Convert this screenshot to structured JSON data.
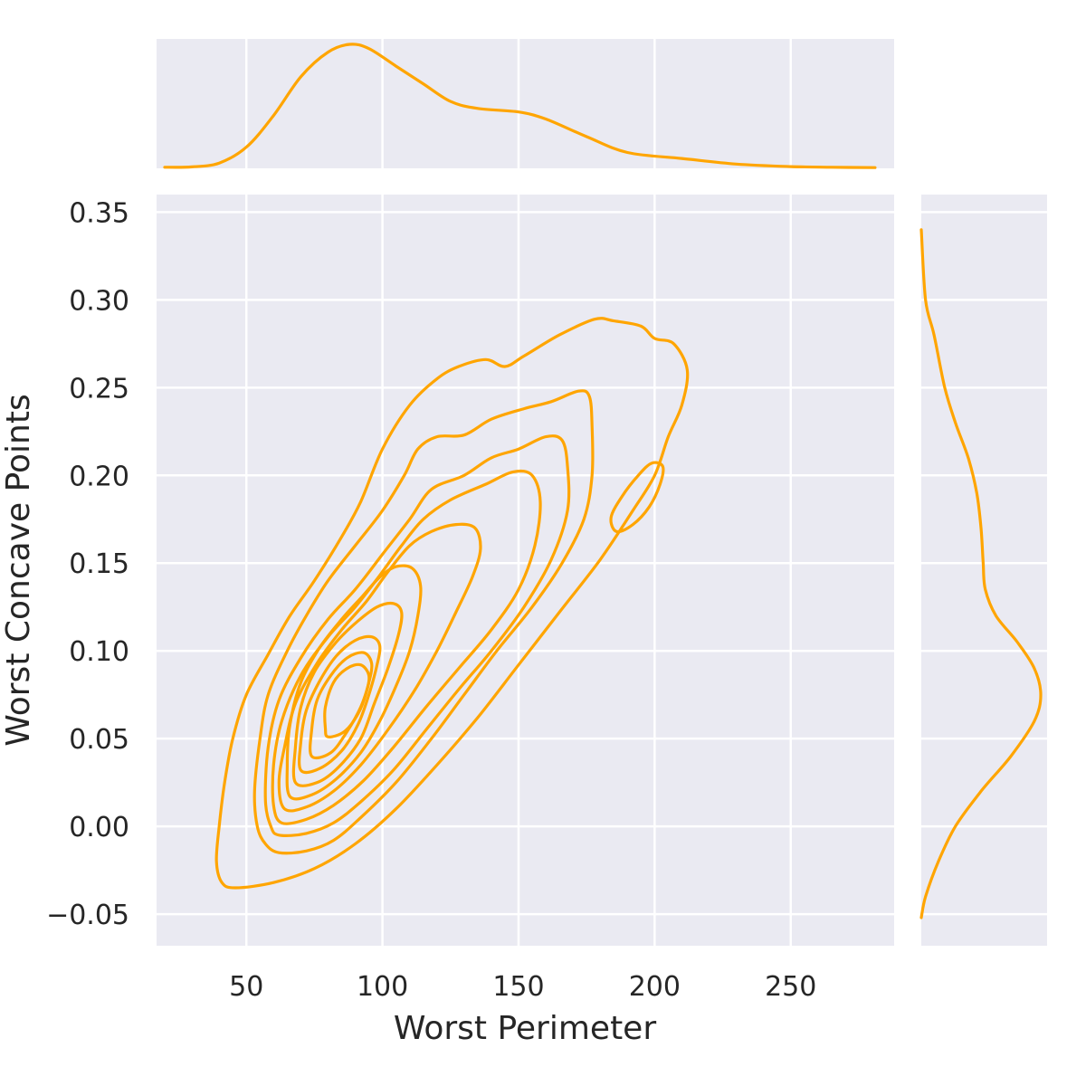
{
  "chart_data": {
    "type": "kde-joint",
    "xlabel": "Worst Perimeter",
    "ylabel": "Worst Concave Points",
    "xlim": [
      17,
      288
    ],
    "ylim": [
      -0.068,
      0.36
    ],
    "x_ticks": [
      50,
      100,
      150,
      200,
      250
    ],
    "x_tick_labels": [
      "50",
      "100",
      "150",
      "200",
      "250"
    ],
    "y_ticks": [
      -0.05,
      0.0,
      0.05,
      0.1,
      0.15,
      0.2,
      0.25,
      0.3,
      0.35
    ],
    "y_tick_labels": [
      "−0.05",
      "0.00",
      "0.05",
      "0.10",
      "0.15",
      "0.20",
      "0.25",
      "0.30",
      "0.35"
    ],
    "grid": true,
    "line_color": "#FFA500",
    "panel_color": "#EAEAF2",
    "contours": [
      {
        "level": 1,
        "points": [
          [
            46,
            -0.035
          ],
          [
            60,
            -0.032
          ],
          [
            75,
            -0.024
          ],
          [
            90,
            -0.01
          ],
          [
            105,
            0.01
          ],
          [
            120,
            0.035
          ],
          [
            135,
            0.062
          ],
          [
            150,
            0.092
          ],
          [
            165,
            0.122
          ],
          [
            180,
            0.152
          ],
          [
            192,
            0.18
          ],
          [
            200,
            0.2
          ],
          [
            205,
            0.222
          ],
          [
            210,
            0.24
          ],
          [
            212,
            0.26
          ],
          [
            207,
            0.275
          ],
          [
            200,
            0.278
          ],
          [
            195,
            0.285
          ],
          [
            185,
            0.288
          ],
          [
            178,
            0.289
          ],
          [
            165,
            0.28
          ],
          [
            152,
            0.268
          ],
          [
            145,
            0.262
          ],
          [
            138,
            0.266
          ],
          [
            128,
            0.262
          ],
          [
            120,
            0.255
          ],
          [
            110,
            0.24
          ],
          [
            100,
            0.215
          ],
          [
            92,
            0.185
          ],
          [
            85,
            0.165
          ],
          [
            75,
            0.14
          ],
          [
            66,
            0.12
          ],
          [
            58,
            0.098
          ],
          [
            50,
            0.075
          ],
          [
            45,
            0.05
          ],
          [
            42,
            0.025
          ],
          [
            40,
            0.0
          ],
          [
            39,
            -0.02
          ],
          [
            41,
            -0.032
          ],
          [
            46,
            -0.035
          ]
        ]
      },
      {
        "level": 2,
        "points": [
          [
            62,
            -0.015
          ],
          [
            72,
            -0.014
          ],
          [
            82,
            -0.008
          ],
          [
            92,
            0.005
          ],
          [
            105,
            0.025
          ],
          [
            118,
            0.05
          ],
          [
            130,
            0.075
          ],
          [
            142,
            0.1
          ],
          [
            155,
            0.125
          ],
          [
            166,
            0.15
          ],
          [
            174,
            0.175
          ],
          [
            177,
            0.2
          ],
          [
            177,
            0.228
          ],
          [
            176,
            0.245
          ],
          [
            172,
            0.248
          ],
          [
            162,
            0.242
          ],
          [
            152,
            0.238
          ],
          [
            140,
            0.232
          ],
          [
            130,
            0.223
          ],
          [
            120,
            0.222
          ],
          [
            113,
            0.215
          ],
          [
            108,
            0.2
          ],
          [
            100,
            0.18
          ],
          [
            90,
            0.16
          ],
          [
            80,
            0.14
          ],
          [
            72,
            0.12
          ],
          [
            65,
            0.1
          ],
          [
            58,
            0.075
          ],
          [
            55,
            0.05
          ],
          [
            53,
            0.02
          ],
          [
            54,
            0.0
          ],
          [
            57,
            -0.01
          ],
          [
            62,
            -0.015
          ]
        ]
      },
      {
        "level": 3,
        "points": [
          [
            62,
            -0.005
          ],
          [
            72,
            -0.004
          ],
          [
            82,
            0.002
          ],
          [
            92,
            0.014
          ],
          [
            104,
            0.032
          ],
          [
            116,
            0.055
          ],
          [
            128,
            0.078
          ],
          [
            140,
            0.1
          ],
          [
            152,
            0.125
          ],
          [
            162,
            0.152
          ],
          [
            168,
            0.18
          ],
          [
            168,
            0.205
          ],
          [
            166,
            0.22
          ],
          [
            160,
            0.222
          ],
          [
            150,
            0.215
          ],
          [
            140,
            0.21
          ],
          [
            130,
            0.2
          ],
          [
            118,
            0.192
          ],
          [
            110,
            0.175
          ],
          [
            100,
            0.155
          ],
          [
            90,
            0.135
          ],
          [
            80,
            0.118
          ],
          [
            70,
            0.096
          ],
          [
            62,
            0.072
          ],
          [
            58,
            0.045
          ],
          [
            57,
            0.015
          ],
          [
            59,
            0.0
          ],
          [
            62,
            -0.005
          ]
        ]
      },
      {
        "level": 4,
        "points": [
          [
            63,
            0.002
          ],
          [
            72,
            0.004
          ],
          [
            82,
            0.012
          ],
          [
            93,
            0.026
          ],
          [
            104,
            0.045
          ],
          [
            116,
            0.068
          ],
          [
            128,
            0.09
          ],
          [
            140,
            0.112
          ],
          [
            150,
            0.135
          ],
          [
            156,
            0.16
          ],
          [
            158,
            0.185
          ],
          [
            155,
            0.2
          ],
          [
            148,
            0.202
          ],
          [
            138,
            0.195
          ],
          [
            125,
            0.186
          ],
          [
            115,
            0.175
          ],
          [
            107,
            0.16
          ],
          [
            99,
            0.143
          ],
          [
            90,
            0.125
          ],
          [
            80,
            0.108
          ],
          [
            70,
            0.086
          ],
          [
            63,
            0.06
          ],
          [
            60,
            0.035
          ],
          [
            60,
            0.012
          ],
          [
            63,
            0.002
          ]
        ]
      },
      {
        "level": 5,
        "points": [
          [
            64,
            0.01
          ],
          [
            72,
            0.011
          ],
          [
            82,
            0.02
          ],
          [
            92,
            0.035
          ],
          [
            102,
            0.055
          ],
          [
            112,
            0.078
          ],
          [
            120,
            0.1
          ],
          [
            127,
            0.122
          ],
          [
            133,
            0.142
          ],
          [
            136,
            0.158
          ],
          [
            134,
            0.17
          ],
          [
            127,
            0.172
          ],
          [
            118,
            0.168
          ],
          [
            110,
            0.16
          ],
          [
            102,
            0.145
          ],
          [
            94,
            0.128
          ],
          [
            85,
            0.112
          ],
          [
            76,
            0.093
          ],
          [
            68,
            0.07
          ],
          [
            64,
            0.045
          ],
          [
            62,
            0.025
          ],
          [
            64,
            0.01
          ]
        ]
      },
      {
        "level": 6,
        "points": [
          [
            66,
            0.017
          ],
          [
            74,
            0.018
          ],
          [
            83,
            0.027
          ],
          [
            92,
            0.042
          ],
          [
            99,
            0.06
          ],
          [
            105,
            0.08
          ],
          [
            110,
            0.1
          ],
          [
            113,
            0.12
          ],
          [
            114,
            0.137
          ],
          [
            111,
            0.147
          ],
          [
            105,
            0.148
          ],
          [
            99,
            0.142
          ],
          [
            92,
            0.13
          ],
          [
            85,
            0.118
          ],
          [
            77,
            0.102
          ],
          [
            70,
            0.082
          ],
          [
            66,
            0.058
          ],
          [
            65,
            0.035
          ],
          [
            66,
            0.017
          ]
        ]
      },
      {
        "level": 7,
        "points": [
          [
            68,
            0.025
          ],
          [
            76,
            0.025
          ],
          [
            84,
            0.034
          ],
          [
            92,
            0.05
          ],
          [
            97,
            0.07
          ],
          [
            102,
            0.09
          ],
          [
            106,
            0.11
          ],
          [
            107,
            0.122
          ],
          [
            104,
            0.127
          ],
          [
            98,
            0.125
          ],
          [
            91,
            0.117
          ],
          [
            83,
            0.105
          ],
          [
            75,
            0.088
          ],
          [
            70,
            0.068
          ],
          [
            68,
            0.045
          ],
          [
            68,
            0.025
          ]
        ]
      },
      {
        "level": 8,
        "points": [
          [
            70,
            0.032
          ],
          [
            77,
            0.033
          ],
          [
            85,
            0.043
          ],
          [
            91,
            0.058
          ],
          [
            95,
            0.075
          ],
          [
            98,
            0.092
          ],
          [
            99,
            0.103
          ],
          [
            96,
            0.108
          ],
          [
            90,
            0.106
          ],
          [
            83,
            0.097
          ],
          [
            77,
            0.083
          ],
          [
            72,
            0.066
          ],
          [
            70,
            0.048
          ],
          [
            70,
            0.032
          ]
        ]
      },
      {
        "level": 9,
        "points": [
          [
            74,
            0.04
          ],
          [
            81,
            0.042
          ],
          [
            87,
            0.054
          ],
          [
            92,
            0.068
          ],
          [
            95,
            0.082
          ],
          [
            96,
            0.093
          ],
          [
            93,
            0.099
          ],
          [
            87,
            0.096
          ],
          [
            81,
            0.086
          ],
          [
            76,
            0.072
          ],
          [
            74,
            0.055
          ],
          [
            74,
            0.04
          ]
        ]
      },
      {
        "level": 10,
        "points": [
          [
            80,
            0.051
          ],
          [
            86,
            0.054
          ],
          [
            91,
            0.064
          ],
          [
            94,
            0.076
          ],
          [
            95,
            0.086
          ],
          [
            92,
            0.092
          ],
          [
            87,
            0.09
          ],
          [
            82,
            0.082
          ],
          [
            79,
            0.068
          ],
          [
            79,
            0.056
          ],
          [
            80,
            0.051
          ]
        ]
      },
      {
        "level": 11,
        "points": [
          [
            186,
            0.168
          ],
          [
            192,
            0.172
          ],
          [
            198,
            0.182
          ],
          [
            202,
            0.195
          ],
          [
            203,
            0.205
          ],
          [
            199,
            0.207
          ],
          [
            194,
            0.2
          ],
          [
            188,
            0.188
          ],
          [
            184,
            0.176
          ],
          [
            186,
            0.168
          ]
        ]
      }
    ],
    "marginal_x": [
      [
        20,
        0.0003
      ],
      [
        30,
        0.0004
      ],
      [
        40,
        0.0015
      ],
      [
        50,
        0.006
      ],
      [
        60,
        0.015
      ],
      [
        70,
        0.026
      ],
      [
        80,
        0.033
      ],
      [
        88,
        0.0352
      ],
      [
        95,
        0.034
      ],
      [
        105,
        0.029
      ],
      [
        115,
        0.024
      ],
      [
        125,
        0.019
      ],
      [
        135,
        0.017
      ],
      [
        150,
        0.016
      ],
      [
        160,
        0.014
      ],
      [
        175,
        0.009
      ],
      [
        190,
        0.0045
      ],
      [
        210,
        0.0028
      ],
      [
        230,
        0.0012
      ],
      [
        250,
        0.0005
      ],
      [
        265,
        0.0003
      ],
      [
        281,
        0.0002
      ]
    ],
    "marginal_y": [
      [
        -0.052,
        0.0
      ],
      [
        -0.04,
        0.2
      ],
      [
        -0.02,
        0.8
      ],
      [
        0.0,
        1.6
      ],
      [
        0.02,
        2.8
      ],
      [
        0.04,
        4.2
      ],
      [
        0.06,
        5.3
      ],
      [
        0.075,
        5.6
      ],
      [
        0.09,
        5.3
      ],
      [
        0.105,
        4.5
      ],
      [
        0.12,
        3.5
      ],
      [
        0.135,
        3.0
      ],
      [
        0.15,
        2.9
      ],
      [
        0.17,
        2.8
      ],
      [
        0.19,
        2.6
      ],
      [
        0.21,
        2.2
      ],
      [
        0.23,
        1.6
      ],
      [
        0.25,
        1.1
      ],
      [
        0.28,
        0.6
      ],
      [
        0.3,
        0.2
      ],
      [
        0.34,
        0.0
      ]
    ]
  }
}
